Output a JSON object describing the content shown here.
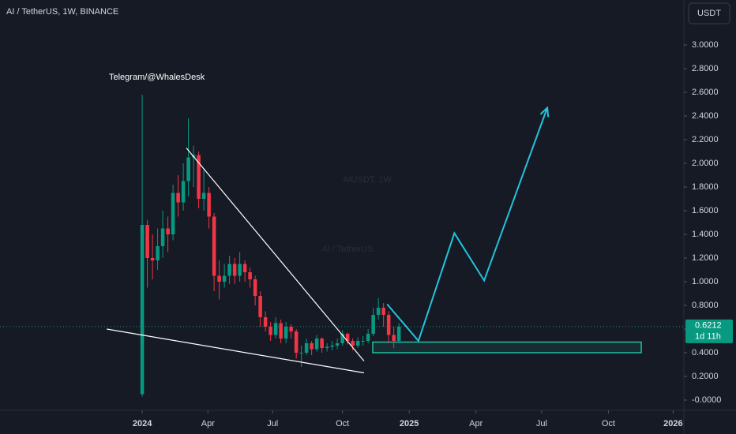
{
  "chart_data": {
    "type": "candlestick",
    "title": "AI / TetherUS, 1W, BINANCE",
    "currency_button": "USDT",
    "watermark": "AIUSDT, 1W",
    "watermark_subtitle": "AI / TetherUS",
    "annotation": "Telegram/@WhalesDesk",
    "up_color": "#089981",
    "down_color": "#f23645",
    "categories": [
      null,
      null,
      null,
      null,
      null,
      null,
      null,
      null,
      null,
      null,
      null,
      null,
      null,
      null,
      null,
      null,
      null,
      null,
      null,
      null,
      null,
      null,
      null,
      null,
      null,
      null,
      null,
      null,
      null,
      null,
      null,
      null,
      null,
      null,
      null,
      null,
      null,
      null,
      null,
      null,
      null,
      null,
      null,
      null,
      null,
      null,
      null,
      null,
      null,
      null,
      null
    ],
    "open": [
      0.05,
      1.48,
      1.2,
      1.18,
      1.3,
      1.45,
      1.4,
      1.75,
      1.67,
      1.85,
      2.05,
      2.07,
      1.7,
      1.75,
      1.55,
      1.05,
      1.0,
      1.05,
      1.15,
      1.05,
      1.15,
      1.08,
      1.02,
      0.88,
      0.7,
      0.62,
      0.55,
      0.65,
      0.52,
      0.62,
      0.58,
      0.4,
      0.4,
      0.48,
      0.43,
      0.52,
      0.44,
      0.45,
      0.46,
      0.48,
      0.56,
      0.5,
      0.46,
      0.5,
      0.5,
      0.56,
      0.72,
      0.78,
      0.72,
      0.55,
      0.5
    ],
    "high": [
      2.58,
      1.52,
      1.4,
      1.45,
      1.6,
      1.55,
      1.82,
      1.9,
      2.0,
      2.38,
      2.15,
      2.1,
      1.95,
      1.8,
      1.58,
      1.18,
      1.15,
      1.22,
      1.2,
      1.25,
      1.18,
      1.12,
      1.05,
      0.92,
      0.75,
      0.66,
      0.7,
      0.68,
      0.66,
      0.64,
      0.6,
      0.46,
      0.52,
      0.5,
      0.55,
      0.53,
      0.48,
      0.5,
      0.52,
      0.59,
      0.57,
      0.52,
      0.53,
      0.54,
      0.6,
      0.78,
      0.86,
      0.82,
      0.75,
      0.62,
      0.65
    ],
    "low": [
      0.03,
      0.95,
      1.02,
      1.1,
      1.2,
      1.25,
      1.35,
      1.55,
      1.6,
      1.72,
      1.8,
      1.62,
      1.6,
      1.45,
      0.92,
      0.85,
      0.95,
      0.98,
      0.98,
      1.0,
      1.0,
      0.95,
      0.8,
      0.62,
      0.58,
      0.5,
      0.52,
      0.48,
      0.48,
      0.52,
      0.35,
      0.28,
      0.38,
      0.38,
      0.41,
      0.4,
      0.41,
      0.42,
      0.43,
      0.46,
      0.47,
      0.42,
      0.44,
      0.46,
      0.48,
      0.54,
      0.68,
      0.62,
      0.48,
      0.44,
      0.48
    ],
    "close": [
      1.48,
      1.2,
      1.18,
      1.3,
      1.45,
      1.4,
      1.75,
      1.67,
      1.85,
      2.05,
      2.07,
      1.7,
      1.75,
      1.55,
      1.05,
      1.0,
      1.05,
      1.15,
      1.05,
      1.15,
      1.08,
      1.02,
      0.88,
      0.7,
      0.62,
      0.55,
      0.65,
      0.52,
      0.62,
      0.58,
      0.4,
      0.4,
      0.48,
      0.43,
      0.52,
      0.44,
      0.45,
      0.46,
      0.48,
      0.56,
      0.5,
      0.46,
      0.5,
      0.5,
      0.56,
      0.72,
      0.78,
      0.72,
      0.55,
      0.5,
      0.6212
    ],
    "last_price": {
      "value": 0.6212,
      "label": "0.6212",
      "countdown": "1d 11h",
      "color": "#089981"
    },
    "xlim": [
      -27.7,
      105.5
    ],
    "ylim": [
      -0.0867,
      3.38
    ],
    "xticks": [
      {
        "value": 0,
        "label": "2024"
      },
      {
        "value": 12.8,
        "label": "Apr"
      },
      {
        "value": 25.4,
        "label": "Jul"
      },
      {
        "value": 39,
        "label": "Oct"
      },
      {
        "value": 52,
        "label": "2025"
      },
      {
        "value": 65,
        "label": "Apr"
      },
      {
        "value": 77.8,
        "label": "Jul"
      },
      {
        "value": 90.8,
        "label": "Oct"
      },
      {
        "value": 103.4,
        "label": "2026"
      }
    ],
    "yticks": [
      {
        "value": 3,
        "label": "3.0000"
      },
      {
        "value": 2.8,
        "label": "2.8000"
      },
      {
        "value": 2.6,
        "label": "2.6000"
      },
      {
        "value": 2.4,
        "label": "2.4000"
      },
      {
        "value": 2.2,
        "label": "2.2000"
      },
      {
        "value": 2,
        "label": "2.0000"
      },
      {
        "value": 1.8,
        "label": "1.8000"
      },
      {
        "value": 1.6,
        "label": "1.6000"
      },
      {
        "value": 1.4,
        "label": "1.4000"
      },
      {
        "value": 1.2,
        "label": "1.2000"
      },
      {
        "value": 1,
        "label": "1.0000"
      },
      {
        "value": 0.8,
        "label": "0.8000"
      },
      {
        "value": 0.6,
        "label": "0.6000"
      },
      {
        "value": 0.4,
        "label": "0.4000"
      },
      {
        "value": 0.2,
        "label": "0.2000"
      },
      {
        "value": 0,
        "label": "-0.0000"
      }
    ],
    "overlays": [
      {
        "color": "#ffffff",
        "x": [
          8.6,
          43.2
        ],
        "y": [
          2.13,
          0.33
        ]
      },
      {
        "color": "#ffffff",
        "x": [
          -6.9,
          43.2
        ],
        "y": [
          0.6,
          0.23
        ]
      },
      {
        "color": "#22c3dd",
        "x": [
          47.7,
          53.8,
          60.8,
          66.6,
          78.9
        ],
        "y": [
          0.81,
          0.5,
          1.41,
          1.01,
          2.47
        ],
        "arrow": true
      }
    ],
    "zone": {
      "color": "#1fbf9f",
      "x": [
        44.9,
        97.2
      ],
      "y": [
        0.4,
        0.49
      ]
    }
  }
}
